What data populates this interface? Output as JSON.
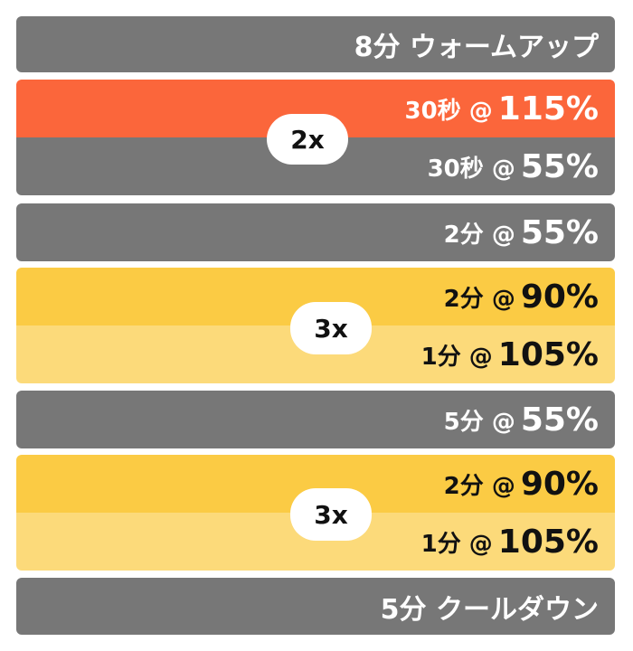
{
  "warmup": {
    "label": "8分 ウォームアップ"
  },
  "block1": {
    "badge": "2x",
    "rows": [
      {
        "time": "30秒 @",
        "percent": "115%"
      },
      {
        "time": "30秒 @",
        "percent": "55%"
      }
    ]
  },
  "rest1": {
    "time": "2分 @",
    "percent": "55%"
  },
  "block2": {
    "badge": "3x",
    "rows": [
      {
        "time": "2分 @",
        "percent": "90%"
      },
      {
        "time": "1分 @",
        "percent": "105%"
      }
    ]
  },
  "rest2": {
    "time": "5分 @",
    "percent": "55%"
  },
  "block3": {
    "badge": "3x",
    "rows": [
      {
        "time": "2分 @",
        "percent": "90%"
      },
      {
        "time": "1分 @",
        "percent": "105%"
      }
    ]
  },
  "cooldown": {
    "label": "5分 クールダウン"
  },
  "colors": {
    "gray": "#777777",
    "orange": "#fb663b",
    "yellow_dark": "#fbcb44",
    "yellow_light": "#fcda7a"
  }
}
